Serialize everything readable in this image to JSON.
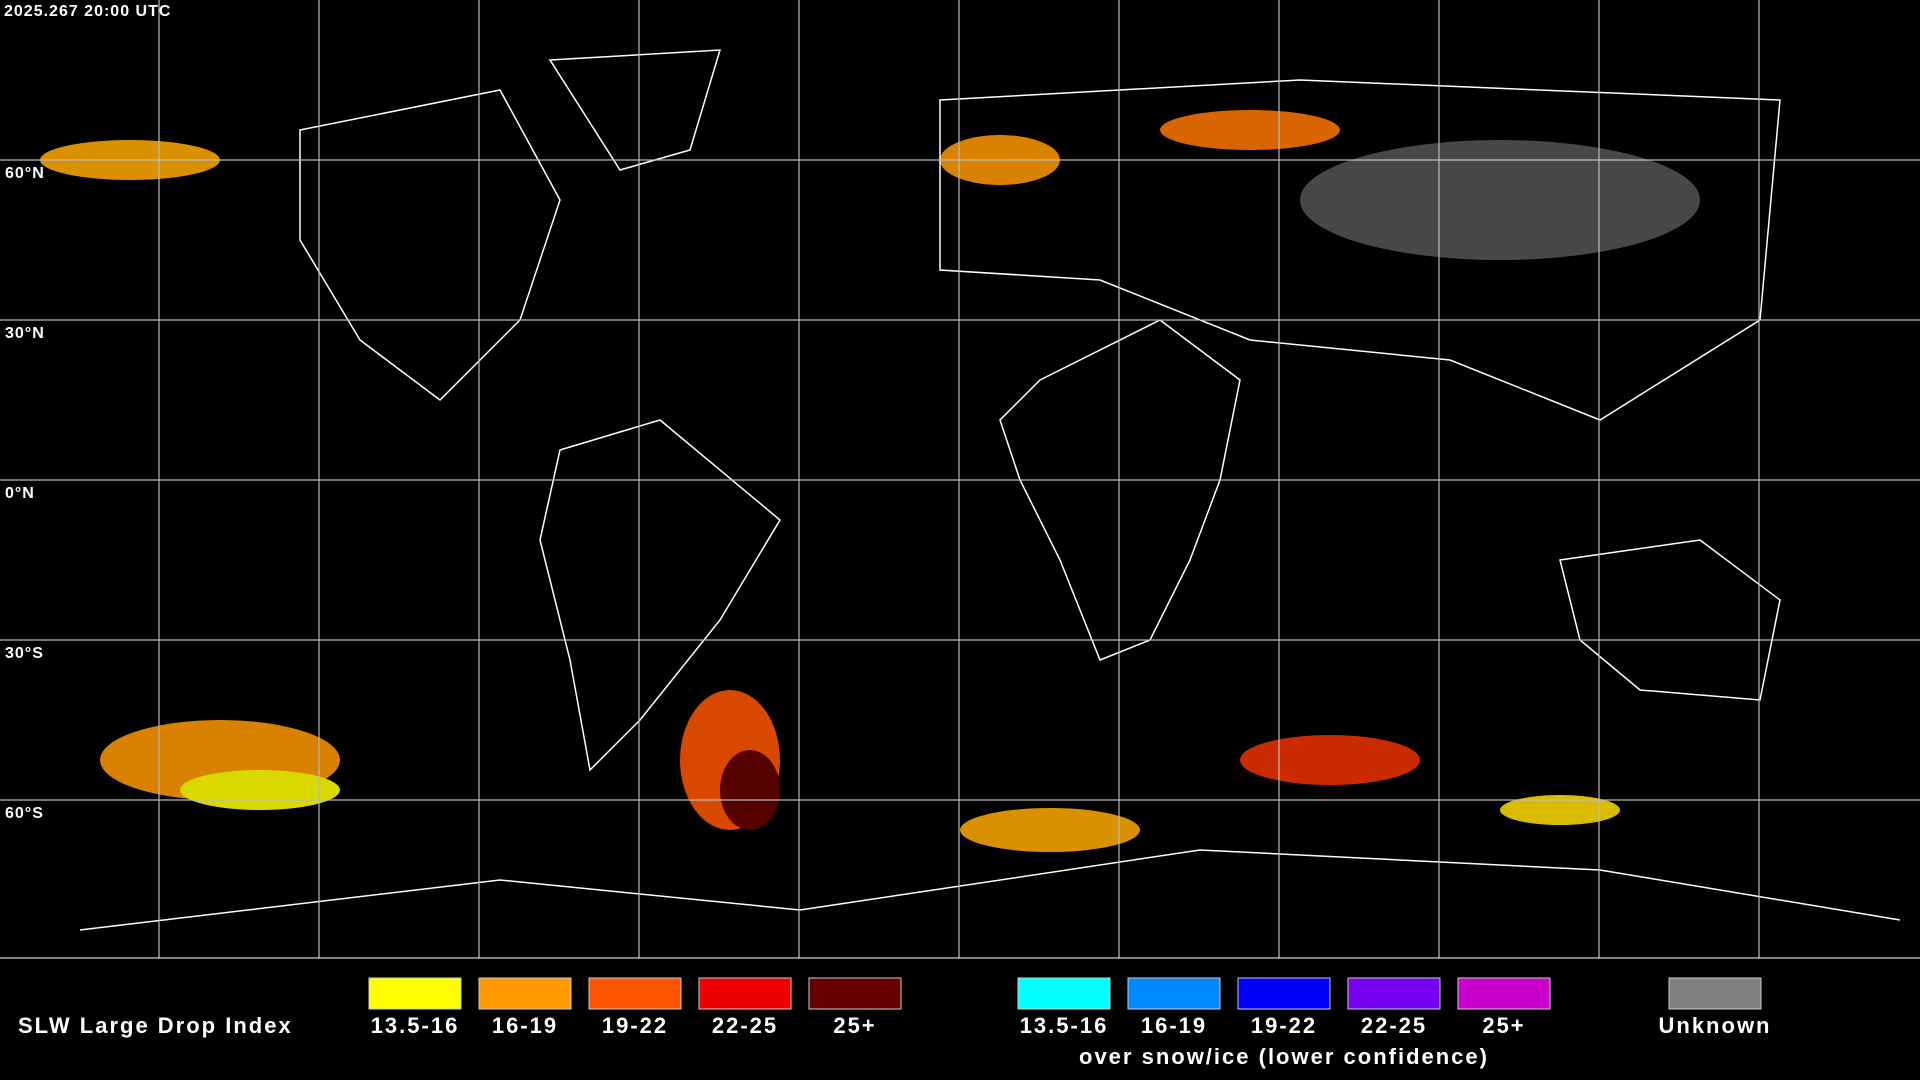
{
  "header": {
    "timestamp": "2025.267 20:00 UTC"
  },
  "map": {
    "latitude_labels": [
      "60°N",
      "30°N",
      "0°N",
      "30°S",
      "60°S"
    ]
  },
  "legend": {
    "title": "SLW Large Drop Index",
    "groups": [
      {
        "items": [
          {
            "label": "13.5-16",
            "color": "#ffff00"
          },
          {
            "label": "16-19",
            "color": "#ff9900"
          },
          {
            "label": "19-22",
            "color": "#ff5500"
          },
          {
            "label": "22-25",
            "color": "#ee0000"
          },
          {
            "label": "25+",
            "color": "#660000"
          }
        ]
      },
      {
        "items": [
          {
            "label": "13.5-16",
            "color": "#00ffff"
          },
          {
            "label": "16-19",
            "color": "#0088ff"
          },
          {
            "label": "19-22",
            "color": "#0000ff"
          },
          {
            "label": "22-25",
            "color": "#7700ee"
          },
          {
            "label": "25+",
            "color": "#cc00cc"
          }
        ],
        "caption": "over snow/ice (lower confidence)"
      }
    ],
    "unknown": {
      "label": "Unknown",
      "color": "#808080"
    }
  }
}
